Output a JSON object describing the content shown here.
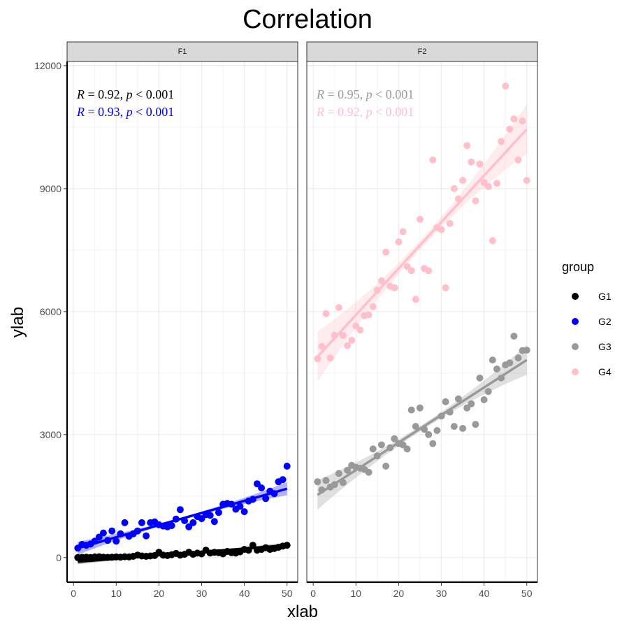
{
  "chart_data": {
    "type": "scatter",
    "title": "Correlation",
    "xlabel": "xlab",
    "ylabel": "ylab",
    "xlim": [
      -1.5,
      52.5
    ],
    "ylim": [
      -600,
      12100
    ],
    "x_ticks": [
      0,
      10,
      20,
      30,
      40,
      50
    ],
    "y_ticks": [
      0,
      3000,
      6000,
      9000,
      12000
    ],
    "grid": true,
    "legend": {
      "title": "group",
      "position": "right",
      "entries": [
        {
          "name": "G1",
          "color": "#000000"
        },
        {
          "name": "G2",
          "color": "#0000ff"
        },
        {
          "name": "G3",
          "color": "#999999"
        },
        {
          "name": "G4",
          "color": "#ffc0cb"
        }
      ]
    },
    "facets": [
      {
        "label": "F1",
        "stats": [
          {
            "group": "G1",
            "R": "0.92",
            "p": "< 0.001"
          },
          {
            "group": "G2",
            "R": "0.93",
            "p": "< 0.001"
          }
        ],
        "series": [
          {
            "group": "G1",
            "fit": [
              [
                1,
                -100
              ],
              [
                50,
                300
              ]
            ],
            "points": [
              [
                1,
                0
              ],
              [
                2,
                5
              ],
              [
                3,
                10
              ],
              [
                4,
                0
              ],
              [
                5,
                15
              ],
              [
                6,
                20
              ],
              [
                7,
                10
              ],
              [
                8,
                5
              ],
              [
                9,
                10
              ],
              [
                10,
                15
              ],
              [
                11,
                10
              ],
              [
                12,
                20
              ],
              [
                13,
                15
              ],
              [
                14,
                30
              ],
              [
                15,
                60
              ],
              [
                16,
                40
              ],
              [
                17,
                30
              ],
              [
                18,
                40
              ],
              [
                19,
                50
              ],
              [
                20,
                130
              ],
              [
                21,
                60
              ],
              [
                22,
                50
              ],
              [
                23,
                70
              ],
              [
                24,
                100
              ],
              [
                25,
                60
              ],
              [
                26,
                80
              ],
              [
                27,
                130
              ],
              [
                28,
                80
              ],
              [
                29,
                110
              ],
              [
                30,
                90
              ],
              [
                31,
                180
              ],
              [
                32,
                110
              ],
              [
                33,
                130
              ],
              [
                34,
                120
              ],
              [
                35,
                90
              ],
              [
                36,
                150
              ],
              [
                37,
                120
              ],
              [
                38,
                110
              ],
              [
                39,
                140
              ],
              [
                40,
                200
              ],
              [
                41,
                180
              ],
              [
                42,
                300
              ],
              [
                43,
                180
              ],
              [
                44,
                200
              ],
              [
                45,
                240
              ],
              [
                46,
                200
              ],
              [
                47,
                220
              ],
              [
                48,
                250
              ],
              [
                49,
                280
              ],
              [
                50,
                300
              ]
            ]
          },
          {
            "group": "G2",
            "fit": [
              [
                1,
                230
              ],
              [
                50,
                1680
              ]
            ],
            "points": [
              [
                1,
                230
              ],
              [
                2,
                320
              ],
              [
                3,
                300
              ],
              [
                4,
                330
              ],
              [
                5,
                400
              ],
              [
                6,
                500
              ],
              [
                7,
                600
              ],
              [
                8,
                420
              ],
              [
                9,
                650
              ],
              [
                10,
                400
              ],
              [
                11,
                580
              ],
              [
                12,
                850
              ],
              [
                13,
                520
              ],
              [
                14,
                580
              ],
              [
                15,
                650
              ],
              [
                16,
                850
              ],
              [
                17,
                530
              ],
              [
                18,
                850
              ],
              [
                19,
                870
              ],
              [
                20,
                800
              ],
              [
                21,
                770
              ],
              [
                22,
                750
              ],
              [
                23,
                780
              ],
              [
                24,
                940
              ],
              [
                25,
                1170
              ],
              [
                26,
                900
              ],
              [
                27,
                750
              ],
              [
                28,
                850
              ],
              [
                29,
                1000
              ],
              [
                30,
                950
              ],
              [
                31,
                1050
              ],
              [
                32,
                1030
              ],
              [
                33,
                880
              ],
              [
                34,
                1100
              ],
              [
                35,
                1300
              ],
              [
                36,
                1320
              ],
              [
                37,
                1300
              ],
              [
                38,
                1180
              ],
              [
                39,
                1250
              ],
              [
                40,
                1120
              ],
              [
                41,
                1380
              ],
              [
                42,
                1420
              ],
              [
                43,
                1800
              ],
              [
                44,
                1700
              ],
              [
                45,
                1440
              ],
              [
                46,
                1620
              ],
              [
                47,
                1560
              ],
              [
                48,
                1850
              ],
              [
                49,
                1900
              ],
              [
                50,
                2230
              ]
            ]
          }
        ]
      },
      {
        "label": "F2",
        "stats": [
          {
            "group": "G3",
            "R": "0.95",
            "p": "< 0.001"
          },
          {
            "group": "G4",
            "R": "0.92",
            "p": "< 0.001"
          }
        ],
        "series": [
          {
            "group": "G3",
            "fit": [
              [
                1,
                1530
              ],
              [
                50,
                4820
              ]
            ],
            "points": [
              [
                1,
                1850
              ],
              [
                2,
                1650
              ],
              [
                3,
                1880
              ],
              [
                4,
                1720
              ],
              [
                5,
                1780
              ],
              [
                6,
                2050
              ],
              [
                7,
                1830
              ],
              [
                8,
                2130
              ],
              [
                9,
                2250
              ],
              [
                10,
                2200
              ],
              [
                11,
                2180
              ],
              [
                12,
                2150
              ],
              [
                13,
                2080
              ],
              [
                14,
                2650
              ],
              [
                15,
                2480
              ],
              [
                16,
                2750
              ],
              [
                17,
                2230
              ],
              [
                18,
                2680
              ],
              [
                19,
                2900
              ],
              [
                20,
                2780
              ],
              [
                21,
                2750
              ],
              [
                22,
                2650
              ],
              [
                23,
                3600
              ],
              [
                24,
                3200
              ],
              [
                25,
                3650
              ],
              [
                26,
                3130
              ],
              [
                27,
                3000
              ],
              [
                28,
                2780
              ],
              [
                29,
                3100
              ],
              [
                30,
                3450
              ],
              [
                31,
                3800
              ],
              [
                32,
                3550
              ],
              [
                33,
                3200
              ],
              [
                34,
                3870
              ],
              [
                35,
                3150
              ],
              [
                36,
                3650
              ],
              [
                37,
                3750
              ],
              [
                38,
                3250
              ],
              [
                39,
                4380
              ],
              [
                40,
                3850
              ],
              [
                41,
                4050
              ],
              [
                42,
                4820
              ],
              [
                43,
                4600
              ],
              [
                44,
                4380
              ],
              [
                45,
                4700
              ],
              [
                46,
                4750
              ],
              [
                47,
                5400
              ],
              [
                48,
                4870
              ],
              [
                49,
                5050
              ],
              [
                50,
                5060
              ]
            ]
          },
          {
            "group": "G4",
            "fit": [
              [
                1,
                4900
              ],
              [
                50,
                10450
              ]
            ],
            "points": [
              [
                1,
                4850
              ],
              [
                2,
                5150
              ],
              [
                3,
                5950
              ],
              [
                4,
                4870
              ],
              [
                5,
                5420
              ],
              [
                6,
                6100
              ],
              [
                7,
                5420
              ],
              [
                8,
                5170
              ],
              [
                9,
                5300
              ],
              [
                10,
                5650
              ],
              [
                11,
                5550
              ],
              [
                12,
                5900
              ],
              [
                13,
                5920
              ],
              [
                14,
                6120
              ],
              [
                15,
                6520
              ],
              [
                16,
                6750
              ],
              [
                17,
                7450
              ],
              [
                18,
                6620
              ],
              [
                19,
                6580
              ],
              [
                20,
                7700
              ],
              [
                21,
                7950
              ],
              [
                22,
                7100
              ],
              [
                23,
                7000
              ],
              [
                24,
                6300
              ],
              [
                25,
                8250
              ],
              [
                26,
                7050
              ],
              [
                27,
                7000
              ],
              [
                28,
                9700
              ],
              [
                29,
                8050
              ],
              [
                30,
                8000
              ],
              [
                31,
                6580
              ],
              [
                32,
                8150
              ],
              [
                33,
                9000
              ],
              [
                34,
                8750
              ],
              [
                35,
                9200
              ],
              [
                36,
                10050
              ],
              [
                37,
                9650
              ],
              [
                38,
                8700
              ],
              [
                39,
                9600
              ],
              [
                40,
                9150
              ],
              [
                41,
                9050
              ],
              [
                42,
                7730
              ],
              [
                43,
                9130
              ],
              [
                44,
                10150
              ],
              [
                45,
                11500
              ],
              [
                46,
                10450
              ],
              [
                47,
                10700
              ],
              [
                48,
                9700
              ],
              [
                49,
                10650
              ],
              [
                50,
                9200
              ]
            ]
          }
        ]
      }
    ]
  }
}
